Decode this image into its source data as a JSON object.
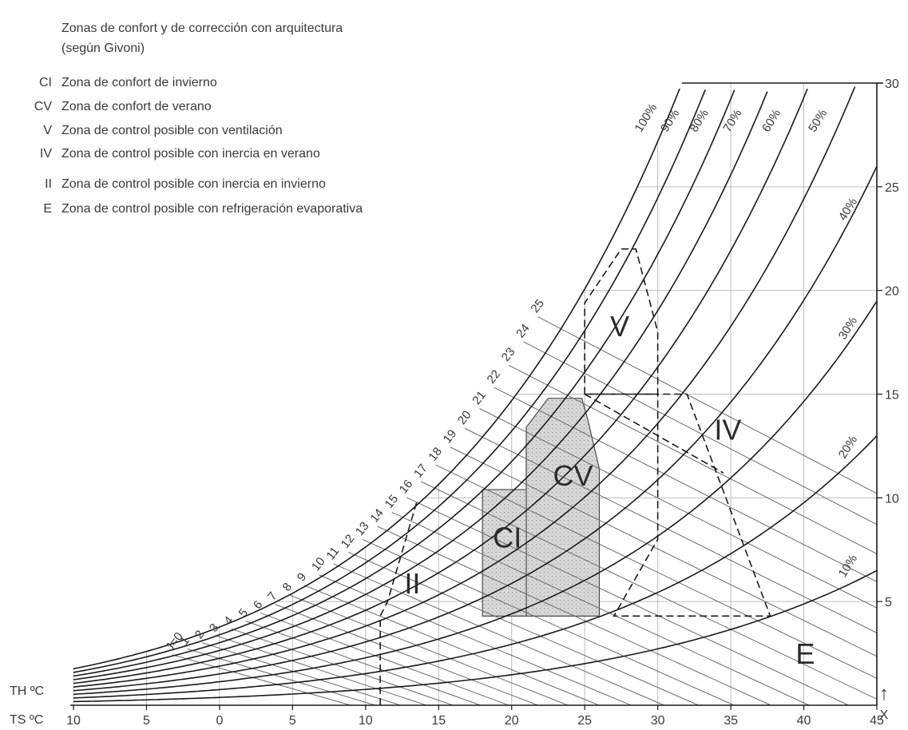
{
  "title": {
    "line1": "Zonas de confort y de corrección con arquitectura",
    "line2": "(según Givoni)"
  },
  "legend": [
    {
      "code": "CI",
      "text": "Zona de confort de invierno"
    },
    {
      "code": "CV",
      "text": "Zona de confort de verano"
    },
    {
      "code": "V",
      "text": "Zona de control posible con ventilación"
    },
    {
      "code": "IV",
      "text": "Zona de control posible con inercia en verano"
    },
    {
      "code": "II",
      "text": "Zona de control posible con inercia en invierno"
    },
    {
      "code": "E",
      "text": "Zona de control posible con refrigeración evaporativa"
    }
  ],
  "axes": {
    "x_ticks": [
      "10",
      "5",
      "0",
      "5",
      "10",
      "15",
      "20",
      "25",
      "30",
      "35",
      "40",
      "45"
    ],
    "y_ticks": [
      "5",
      "10",
      "15",
      "20",
      "25",
      "30"
    ],
    "th_label": "TH ºC",
    "ts_label": "TS ºC",
    "x_axis_label": "X",
    "arrow_glyph": "↑"
  },
  "chart_data": {
    "type": "psychrometric",
    "x_temperature_c": [
      -10,
      -5,
      0,
      5,
      10,
      15,
      20,
      25,
      30,
      35,
      40,
      45
    ],
    "y_humidity_ratio_g_per_kg": [
      5,
      10,
      15,
      20,
      25,
      30
    ],
    "xlim": [
      -10,
      45
    ],
    "ylim": [
      0,
      30
    ],
    "relative_humidity_curves": [
      {
        "label": "10%",
        "rh": 0.1
      },
      {
        "label": "20%",
        "rh": 0.2
      },
      {
        "label": "30%",
        "rh": 0.3
      },
      {
        "label": "40%",
        "rh": 0.4
      },
      {
        "label": "50%",
        "rh": 0.5
      },
      {
        "label": "60%",
        "rh": 0.6
      },
      {
        "label": "70%",
        "rh": 0.7
      },
      {
        "label": "80%",
        "rh": 0.8
      },
      {
        "label": "90%",
        "rh": 0.9
      },
      {
        "label": "100%",
        "rh": 1.0
      }
    ],
    "wet_bulb_lines": [
      {
        "label": "J=0",
        "t": 0
      },
      {
        "label": "1",
        "t": 1
      },
      {
        "label": "2",
        "t": 2
      },
      {
        "label": "3",
        "t": 3
      },
      {
        "label": "4",
        "t": 4
      },
      {
        "label": "5",
        "t": 5
      },
      {
        "label": "6",
        "t": 6
      },
      {
        "label": "7",
        "t": 7
      },
      {
        "label": "8",
        "t": 8
      },
      {
        "label": "9",
        "t": 9
      },
      {
        "label": "10",
        "t": 10
      },
      {
        "label": "11",
        "t": 11
      },
      {
        "label": "12",
        "t": 12
      },
      {
        "label": "13",
        "t": 13
      },
      {
        "label": "14",
        "t": 14
      },
      {
        "label": "15",
        "t": 15
      },
      {
        "label": "16",
        "t": 16
      },
      {
        "label": "17",
        "t": 17
      },
      {
        "label": "18",
        "t": 18
      },
      {
        "label": "19",
        "t": 19
      },
      {
        "label": "20",
        "t": 20
      },
      {
        "label": "21",
        "t": 21
      },
      {
        "label": "22",
        "t": 22
      },
      {
        "label": "23",
        "t": 23
      },
      {
        "label": "24",
        "t": 24
      },
      {
        "label": "25",
        "t": 25
      }
    ],
    "zones": [
      {
        "code": "CI",
        "label": "CI",
        "style": "shaded",
        "polygon": [
          [
            18,
            4.3
          ],
          [
            23,
            4.3
          ],
          [
            23,
            12.6
          ],
          [
            21,
            12.6
          ],
          [
            21,
            10.4
          ],
          [
            18,
            10.4
          ]
        ],
        "label_at": [
          19.7,
          7.6
        ]
      },
      {
        "code": "CV",
        "label": "CV",
        "style": "shaded",
        "polygon": [
          [
            21,
            4.3
          ],
          [
            26,
            4.3
          ],
          [
            26,
            11.4
          ],
          [
            25.2,
            13.8
          ],
          [
            24.8,
            14.8
          ],
          [
            22.5,
            14.8
          ],
          [
            21,
            13.4
          ]
        ],
        "label_at": [
          24.2,
          10.6
        ]
      },
      {
        "code": "V",
        "label": "V",
        "style": "dashed",
        "polygon": [
          [
            25,
            15
          ],
          [
            25,
            19.4
          ],
          [
            27.5,
            22
          ],
          [
            28.5,
            22
          ],
          [
            30,
            18
          ],
          [
            30,
            15
          ]
        ],
        "label_at": [
          27.4,
          17.8
        ]
      },
      {
        "code": "IV",
        "label": "IV",
        "style": "dashed",
        "polygon": [
          [
            25,
            15
          ],
          [
            32,
            15
          ],
          [
            37.7,
            4.3
          ],
          [
            27,
            4.3
          ],
          [
            30,
            8
          ],
          [
            30,
            15
          ]
        ],
        "label_at": [
          34.8,
          12.8
        ]
      },
      {
        "code": "II",
        "label": "II",
        "style": "dashed",
        "polygon": [
          [
            11,
            0
          ],
          [
            11,
            4.3
          ],
          [
            11.5,
            5
          ],
          [
            13.5,
            9.8
          ]
        ],
        "label_at": [
          13.2,
          5.4
        ]
      },
      {
        "code": "E",
        "label": "E",
        "style": "none",
        "label_at": [
          40.1,
          2.0
        ]
      }
    ]
  }
}
